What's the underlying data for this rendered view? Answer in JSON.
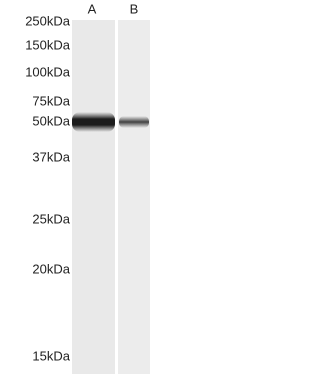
{
  "lanes": [
    "A",
    "B"
  ],
  "markers": [
    "250kDa",
    "150kDa",
    "100kDa",
    "75kDa",
    "50kDa",
    "37kDa",
    "25kDa",
    "20kDa",
    "15kDa"
  ]
}
